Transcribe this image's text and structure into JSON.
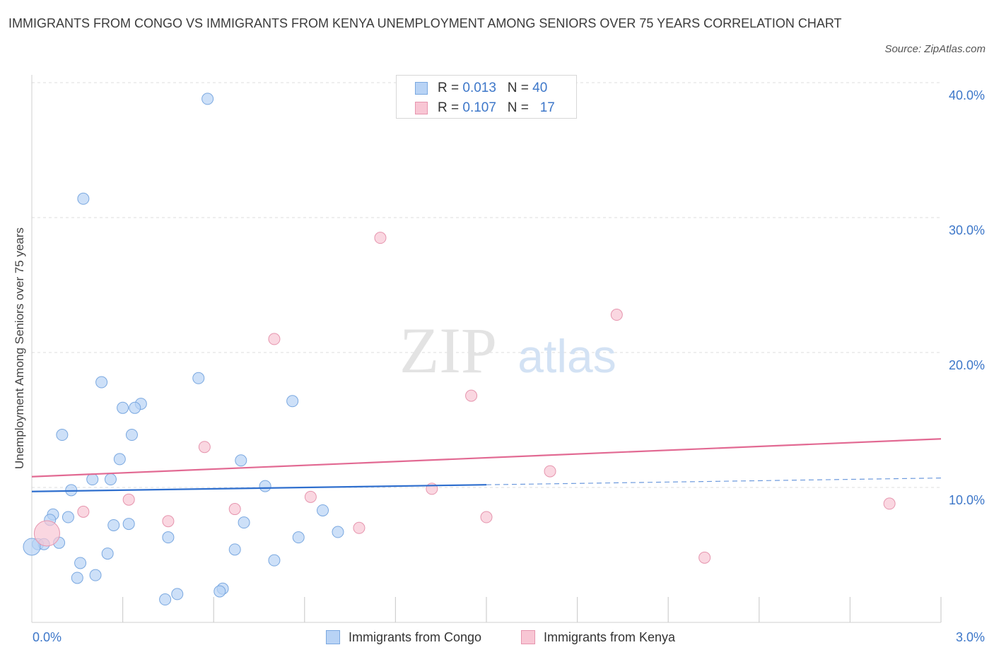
{
  "title": "IMMIGRANTS FROM CONGO VS IMMIGRANTS FROM KENYA UNEMPLOYMENT AMONG SENIORS OVER 75 YEARS CORRELATION CHART",
  "source": "Source: ZipAtlas.com",
  "watermark": {
    "zip": "ZIP",
    "atlas": "atlas"
  },
  "legend_top": [
    {
      "r_label": "R = ",
      "r_value": "0.013",
      "n_label": "N = ",
      "n_value": "40"
    },
    {
      "r_label": "R = ",
      "r_value": "0.107",
      "n_label": "N = ",
      "n_value": "17"
    }
  ],
  "colors": {
    "congo_fill": "#b8d3f5",
    "congo_stroke": "#7aa8e0",
    "congo_line": "#2f6fce",
    "kenya_fill": "#f8c6d4",
    "kenya_stroke": "#e695ae",
    "kenya_line": "#e26a93",
    "tick_label": "#3d77c9",
    "grid": "#dcdcdc"
  },
  "chart_data": {
    "type": "scatter",
    "title": "IMMIGRANTS FROM CONGO VS IMMIGRANTS FROM KENYA UNEMPLOYMENT AMONG SENIORS OVER 75 YEARS CORRELATION CHART",
    "xlabel": "",
    "ylabel": "Unemployment Among Seniors over 75 years",
    "xlim": [
      0,
      3.0
    ],
    "ylim": [
      0,
      40
    ],
    "x_tick_labels": [
      "0.0%",
      "3.0%"
    ],
    "y_ticks": [
      10,
      20,
      30,
      40
    ],
    "y_tick_labels": [
      "10.0%",
      "20.0%",
      "30.0%",
      "40.0%"
    ],
    "grid": true,
    "legend_position": "bottom",
    "series": [
      {
        "name": "Immigrants from Congo",
        "color": "#b8d3f5",
        "r": 0.013,
        "n": 40,
        "trend": {
          "x": [
            0.0,
            1.5
          ],
          "y": [
            9.7,
            10.2
          ],
          "dashed_to": [
            3.0,
            10.7
          ]
        },
        "points": [
          [
            0.58,
            38.8
          ],
          [
            0.17,
            31.4
          ],
          [
            0.23,
            17.8
          ],
          [
            0.55,
            18.1
          ],
          [
            0.3,
            15.9
          ],
          [
            0.36,
            16.2
          ],
          [
            0.34,
            15.9
          ],
          [
            0.86,
            16.4
          ],
          [
            0.1,
            13.9
          ],
          [
            0.33,
            13.9
          ],
          [
            0.29,
            12.1
          ],
          [
            0.69,
            12.0
          ],
          [
            0.2,
            10.6
          ],
          [
            0.26,
            10.6
          ],
          [
            0.13,
            9.8
          ],
          [
            0.77,
            10.1
          ],
          [
            0.07,
            8.0
          ],
          [
            0.12,
            7.8
          ],
          [
            0.06,
            7.6
          ],
          [
            0.27,
            7.2
          ],
          [
            0.32,
            7.3
          ],
          [
            0.7,
            7.4
          ],
          [
            0.96,
            8.3
          ],
          [
            1.01,
            6.7
          ],
          [
            0.45,
            6.3
          ],
          [
            0.88,
            6.3
          ],
          [
            0.02,
            5.8
          ],
          [
            0.04,
            5.8
          ],
          [
            0.09,
            5.9
          ],
          [
            0.67,
            5.4
          ],
          [
            0.25,
            5.1
          ],
          [
            0.16,
            4.4
          ],
          [
            0.8,
            4.6
          ],
          [
            0.15,
            3.3
          ],
          [
            0.21,
            3.5
          ],
          [
            0.63,
            2.5
          ],
          [
            0.62,
            2.3
          ],
          [
            0.48,
            2.1
          ],
          [
            0.44,
            1.7
          ],
          [
            0.0,
            5.6
          ]
        ]
      },
      {
        "name": "Immigrants from Kenya",
        "color": "#f8c6d4",
        "r": 0.107,
        "n": 17,
        "trend": {
          "x": [
            0.0,
            3.0
          ],
          "y": [
            10.8,
            13.6
          ]
        },
        "points": [
          [
            1.15,
            28.5
          ],
          [
            1.93,
            22.8
          ],
          [
            0.8,
            21.0
          ],
          [
            1.45,
            16.8
          ],
          [
            0.57,
            13.0
          ],
          [
            1.71,
            11.2
          ],
          [
            1.32,
            9.9
          ],
          [
            0.32,
            9.1
          ],
          [
            0.92,
            9.3
          ],
          [
            2.83,
            8.8
          ],
          [
            0.17,
            8.2
          ],
          [
            0.67,
            8.4
          ],
          [
            1.5,
            7.8
          ],
          [
            0.45,
            7.5
          ],
          [
            1.08,
            7.0
          ],
          [
            2.22,
            4.8
          ],
          [
            0.05,
            6.6
          ]
        ]
      }
    ]
  }
}
